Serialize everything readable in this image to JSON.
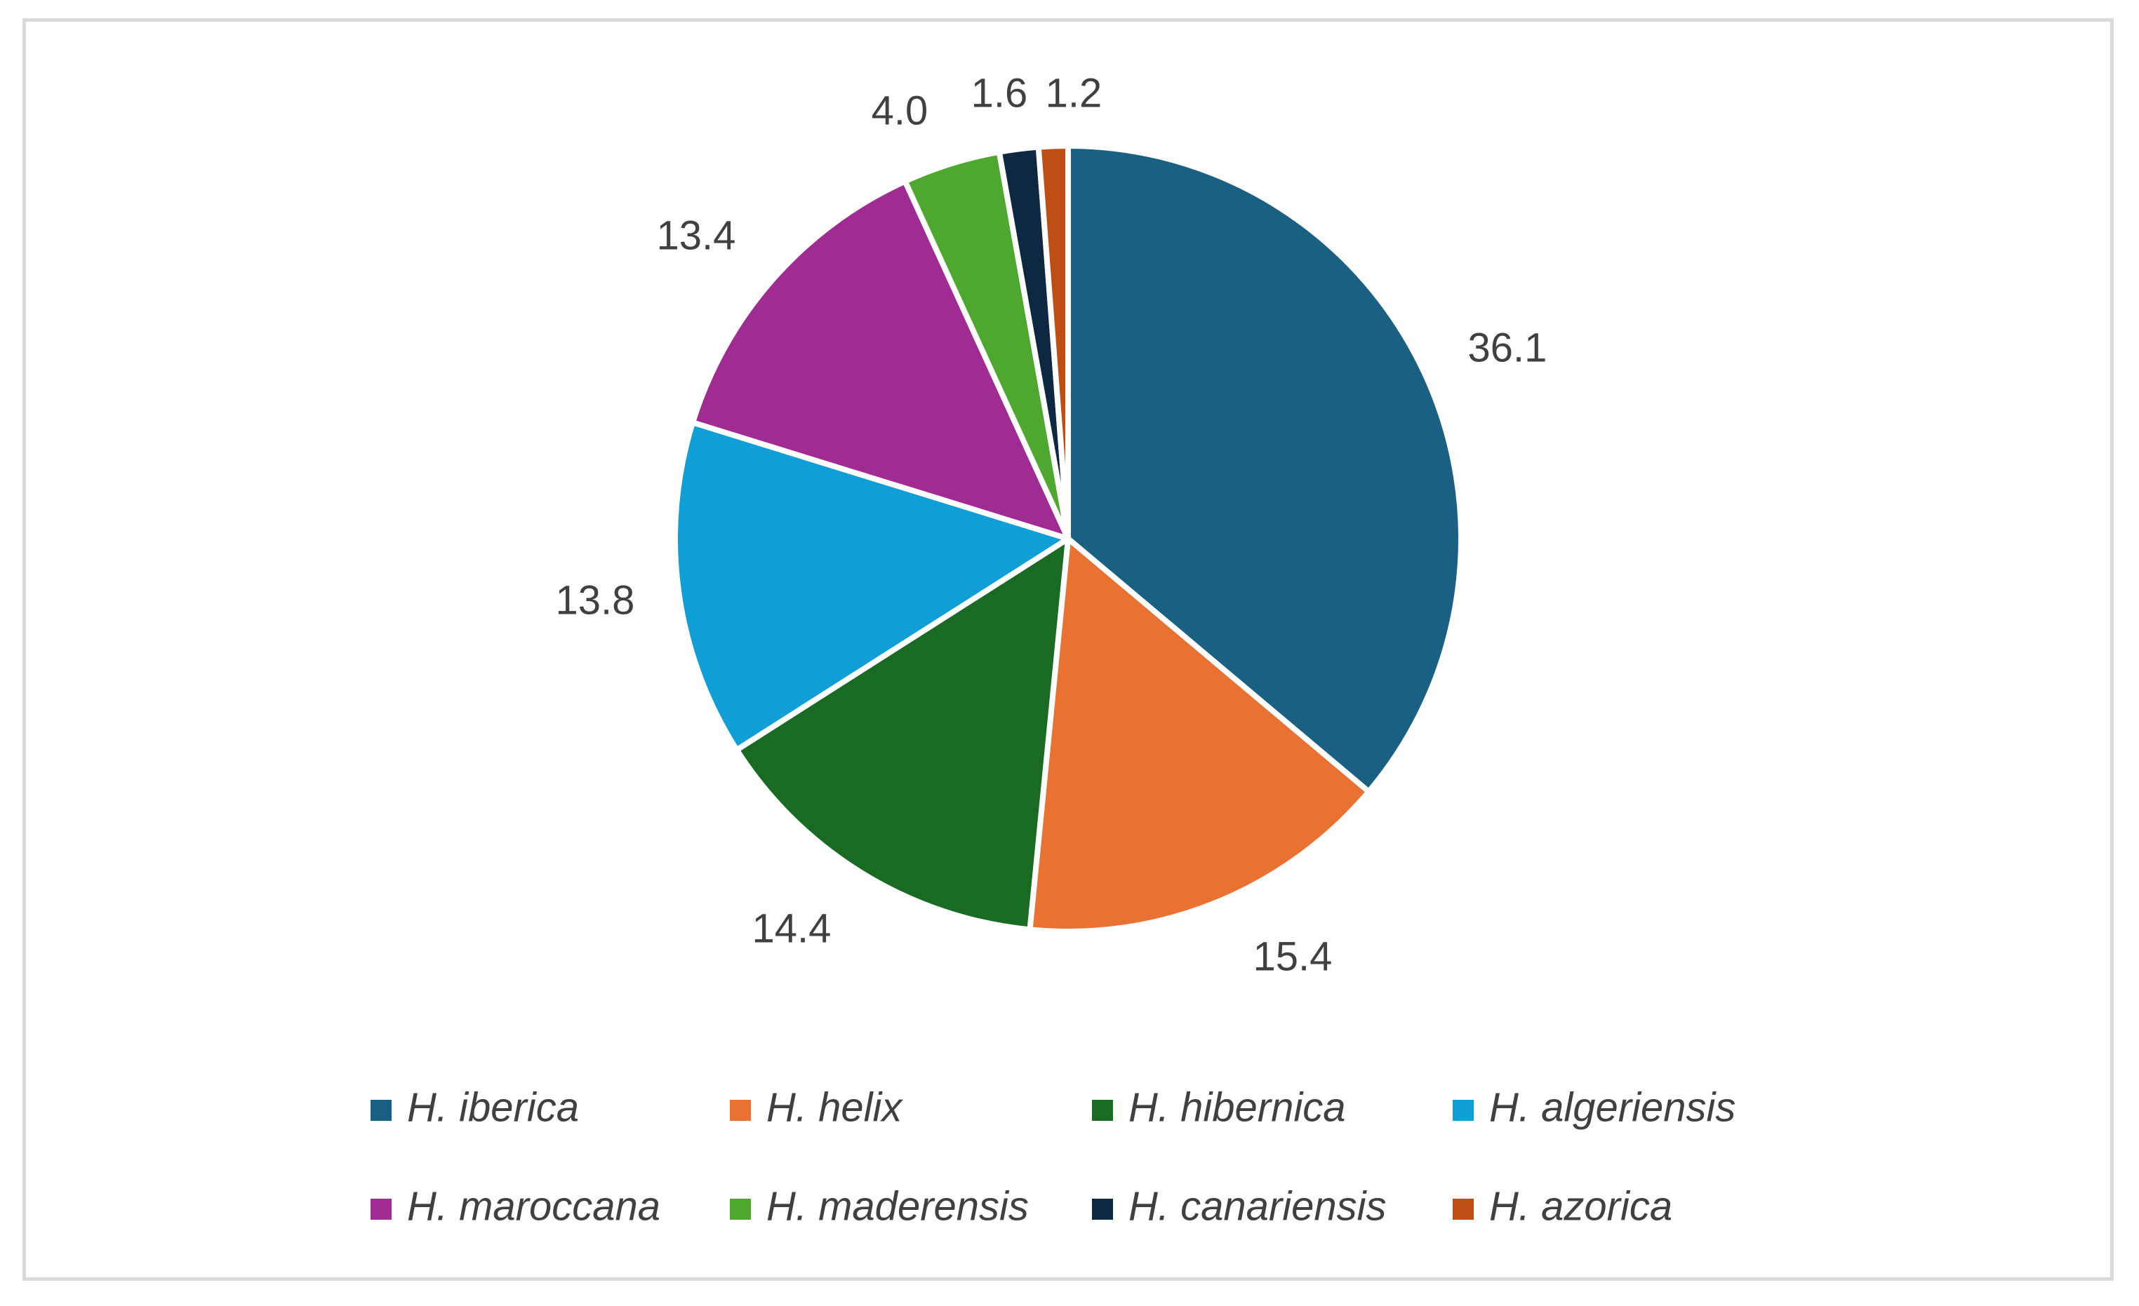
{
  "chart_data": {
    "type": "pie",
    "title": "",
    "categories": [
      "H. iberica",
      "H. helix",
      "H. hibernica",
      "H. algeriensis",
      "H. maroccana",
      "H. maderensis",
      "H. canariensis",
      "H. azorica"
    ],
    "values": [
      36.1,
      15.4,
      14.4,
      13.8,
      13.4,
      4.0,
      1.6,
      1.2
    ],
    "data_labels": [
      "36.1",
      "15.4",
      "14.4",
      "13.8",
      "13.4",
      "4.0",
      "1.6",
      "1.2"
    ],
    "colors": [
      "#1a6082",
      "#e97132",
      "#196b24",
      "#0f9ed5",
      "#a02b93",
      "#4ea72e",
      "#0e2841",
      "#bf4e14"
    ],
    "slice_separator_color": "#ffffff",
    "start": "12 o'clock",
    "direction": "clockwise",
    "legend_position": "bottom",
    "legend_columns": 4,
    "frame_border_color": "#d9d9d9",
    "text_color": "#404040"
  }
}
